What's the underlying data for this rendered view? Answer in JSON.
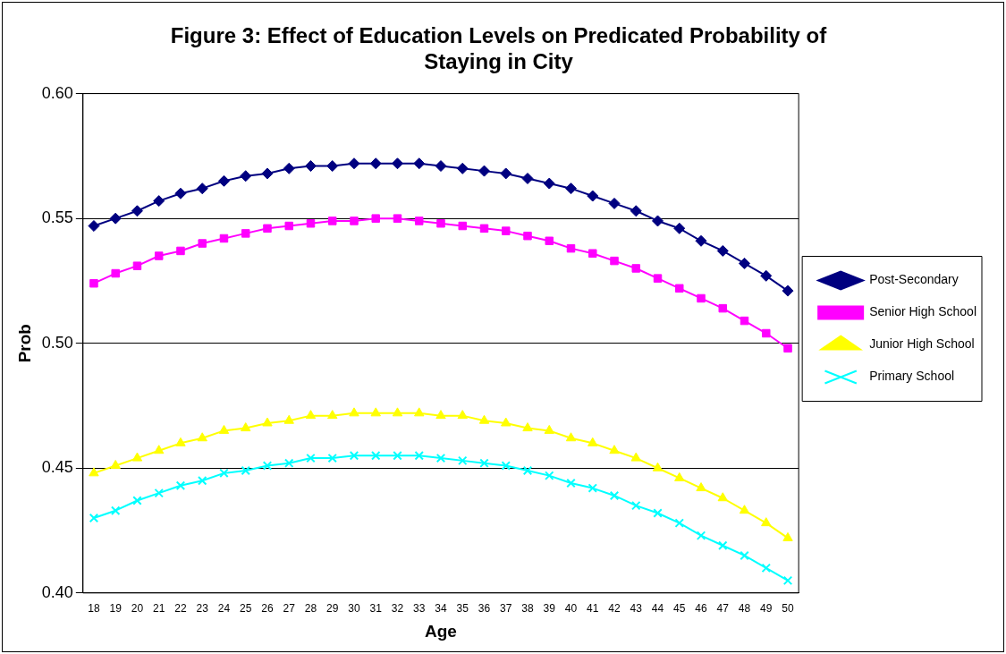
{
  "chart_data": {
    "type": "line",
    "title": "Figure 3: Effect of Education Levels on Predicated Probability of Staying in City",
    "xlabel": "Age",
    "ylabel": "Prob",
    "categories": [
      "18",
      "19",
      "20",
      "21",
      "22",
      "23",
      "24",
      "25",
      "26",
      "27",
      "28",
      "29",
      "30",
      "31",
      "32",
      "33",
      "34",
      "35",
      "36",
      "37",
      "38",
      "39",
      "40",
      "41",
      "42",
      "43",
      "44",
      "45",
      "46",
      "47",
      "48",
      "49",
      "50"
    ],
    "series": [
      {
        "name": "Post-Secondary",
        "color": "#000080",
        "marker": "diamond",
        "values": [
          0.547,
          0.55,
          0.553,
          0.557,
          0.56,
          0.562,
          0.565,
          0.567,
          0.568,
          0.57,
          0.571,
          0.571,
          0.572,
          0.572,
          0.572,
          0.572,
          0.571,
          0.57,
          0.569,
          0.568,
          0.566,
          0.564,
          0.562,
          0.559,
          0.556,
          0.553,
          0.549,
          0.546,
          0.541,
          0.537,
          0.532,
          0.527,
          0.521
        ]
      },
      {
        "name": "Senior High School",
        "color": "#ff00ff",
        "marker": "square",
        "values": [
          0.524,
          0.528,
          0.531,
          0.535,
          0.537,
          0.54,
          0.542,
          0.544,
          0.546,
          0.547,
          0.548,
          0.549,
          0.549,
          0.55,
          0.55,
          0.549,
          0.548,
          0.547,
          0.546,
          0.545,
          0.543,
          0.541,
          0.538,
          0.536,
          0.533,
          0.53,
          0.526,
          0.522,
          0.518,
          0.514,
          0.509,
          0.504,
          0.498
        ]
      },
      {
        "name": "Junior High School",
        "color": "#ffff00",
        "marker": "triangle",
        "values": [
          0.448,
          0.451,
          0.454,
          0.457,
          0.46,
          0.462,
          0.465,
          0.466,
          0.468,
          0.469,
          0.471,
          0.471,
          0.472,
          0.472,
          0.472,
          0.472,
          0.471,
          0.471,
          0.469,
          0.468,
          0.466,
          0.465,
          0.462,
          0.46,
          0.457,
          0.454,
          0.45,
          0.446,
          0.442,
          0.438,
          0.433,
          0.428,
          0.422
        ]
      },
      {
        "name": "Primary School",
        "color": "#00ffff",
        "marker": "cross",
        "values": [
          0.43,
          0.433,
          0.437,
          0.44,
          0.443,
          0.445,
          0.448,
          0.449,
          0.451,
          0.452,
          0.454,
          0.454,
          0.455,
          0.455,
          0.455,
          0.455,
          0.454,
          0.453,
          0.452,
          0.451,
          0.449,
          0.447,
          0.444,
          0.442,
          0.439,
          0.435,
          0.432,
          0.428,
          0.423,
          0.419,
          0.415,
          0.41,
          0.405
        ]
      }
    ],
    "ylim": [
      0.4,
      0.6
    ],
    "yticks": [
      {
        "value": 0.4,
        "label": "0.40"
      },
      {
        "value": 0.45,
        "label": "0.45"
      },
      {
        "value": 0.5,
        "label": "0.50"
      },
      {
        "value": 0.55,
        "label": "0.55"
      },
      {
        "value": 0.6,
        "label": "0.60"
      }
    ],
    "grid": "y",
    "legend": "right",
    "line_style": "solid"
  }
}
